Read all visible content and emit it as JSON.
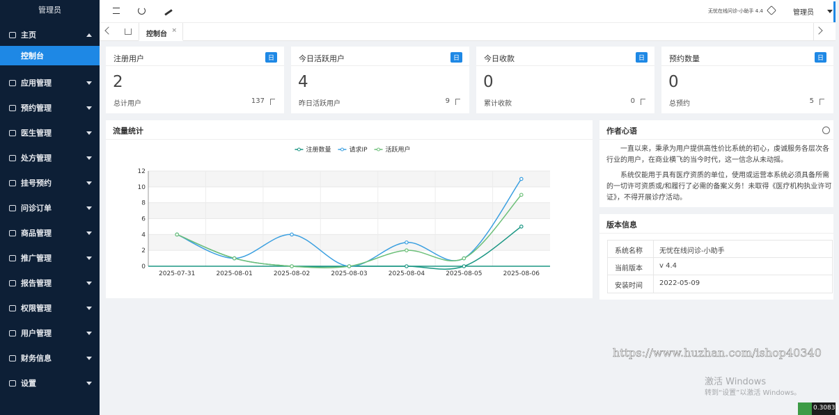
{
  "sidebar": {
    "title": "管理员",
    "menu": [
      {
        "label": "主页",
        "children": [
          "控制台"
        ]
      },
      {
        "label": "应用管理"
      },
      {
        "label": "预约管理"
      },
      {
        "label": "医生管理"
      },
      {
        "label": "处方管理"
      },
      {
        "label": "挂号预约"
      },
      {
        "label": "问诊订单"
      },
      {
        "label": "商品管理"
      },
      {
        "label": "推广管理"
      },
      {
        "label": "报告管理"
      },
      {
        "label": "权限管理"
      },
      {
        "label": "用户管理"
      },
      {
        "label": "财务信息"
      },
      {
        "label": "设置"
      }
    ]
  },
  "header": {
    "app": "无忧在线问诊-小助手 4.4",
    "user": "管理员"
  },
  "tabs": [
    "控制台"
  ],
  "cards": [
    {
      "title": "注册用户",
      "badge": "日",
      "value": "2",
      "sub": "总计用户",
      "sub_value": "137"
    },
    {
      "title": "今日活跃用户",
      "badge": "日",
      "value": "4",
      "sub": "昨日活跃用户",
      "sub_value": "9"
    },
    {
      "title": "今日收款",
      "badge": "日",
      "value": "0",
      "sub": "累计收款",
      "sub_value": "0"
    },
    {
      "title": "预约数量",
      "badge": "日",
      "value": "0",
      "sub": "总预约",
      "sub_value": "5"
    }
  ],
  "chart_panel": {
    "title": "流量统计"
  },
  "chart_data": {
    "type": "line",
    "categories": [
      "2025-07-31",
      "2025-08-01",
      "2025-08-02",
      "2025-08-03",
      "2025-08-04",
      "2025-08-05",
      "2025-08-06"
    ],
    "series": [
      {
        "name": "注册数量",
        "color": "#1a9683",
        "values": [
          4,
          1,
          0,
          0,
          0,
          0,
          5
        ]
      },
      {
        "name": "请求IP",
        "color": "#3a9fe0",
        "values": [
          4,
          1,
          4,
          0,
          3,
          1,
          11
        ]
      },
      {
        "name": "活跃用户",
        "color": "#6cbf78",
        "values": [
          4,
          1,
          0,
          0,
          2,
          1,
          9
        ]
      }
    ],
    "ylim": [
      0,
      12
    ],
    "yticks": [
      0,
      2,
      4,
      6,
      8,
      10,
      12
    ],
    "grid": true,
    "legend": "top"
  },
  "author": {
    "title": "作者心语",
    "paragraphs": [
      "一直以来，秉承为用户提供高性价比系统的初心，虔诚服务各层次各行业的用户，在商业横飞的当今时代，这一信念从未动摇。",
      "系统仅能用于具有医疗资质的单位，使用或运营本系统必须具备所需的一切许可资质或/和履行了必需的备案义务！未取得《医疗机构执业许可证》，不得开展诊疗活动。"
    ]
  },
  "version": {
    "title": "版本信息",
    "rows": [
      [
        "系统名称",
        "无忧在线问诊-小助手"
      ],
      [
        "当前版本",
        "v 4.4"
      ],
      [
        "安装时间",
        "2022-05-09"
      ]
    ]
  },
  "watermark": {
    "site": "https://www.huzhan.com/ishop40340",
    "activate": "激活 Windows",
    "activate_hint": "转到“设置”以激活 Windows。",
    "corner": "0.30831"
  }
}
